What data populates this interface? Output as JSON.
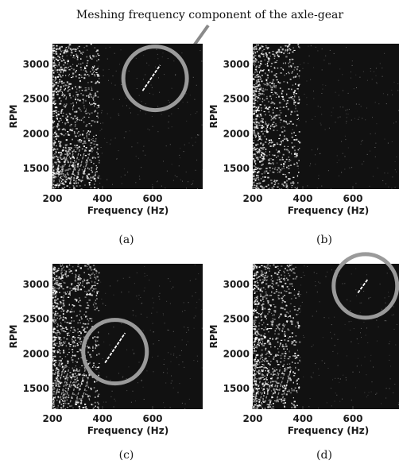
{
  "annotation": {
    "text": "Meshing frequency component of the axle-gear",
    "arrow_color": "#8a8a8a"
  },
  "colors": {
    "background": "#111111",
    "speckle": "#ffffff",
    "circle": "#9a9a9a"
  },
  "chart_data": [
    {
      "type": "spectrogram",
      "panel": "a",
      "caption": "(a)",
      "xlabel": "Frequency (Hz)",
      "ylabel": "RPM",
      "xlim": [
        200,
        800
      ],
      "ylim": [
        1200,
        3300
      ],
      "xticks": [
        200,
        400,
        600
      ],
      "yticks": [
        1500,
        2000,
        2500,
        3000
      ],
      "highlight": {
        "start": [
          560,
          2620
        ],
        "end": [
          630,
          2990
        ],
        "circle_center": [
          610,
          2800
        ]
      }
    },
    {
      "type": "spectrogram",
      "panel": "b",
      "caption": "(b)",
      "xlabel": "Frequency (Hz)",
      "ylabel": "RPM",
      "xlim": [
        200,
        800
      ],
      "ylim": [
        1200,
        3300
      ],
      "xticks": [
        200,
        400,
        600
      ],
      "yticks": [
        1500,
        2000,
        2500,
        3000
      ]
    },
    {
      "type": "spectrogram",
      "panel": "c",
      "caption": "(c)",
      "xlabel": "Frequency (Hz)",
      "ylabel": "RPM",
      "xlim": [
        200,
        800
      ],
      "ylim": [
        1200,
        3300
      ],
      "xticks": [
        200,
        400,
        600
      ],
      "yticks": [
        1500,
        2000,
        2500,
        3000
      ],
      "highlight": {
        "start": [
          410,
          1870
        ],
        "end": [
          490,
          2300
        ],
        "circle_center": [
          450,
          2030
        ]
      }
    },
    {
      "type": "spectrogram",
      "panel": "d",
      "caption": "(d)",
      "xlabel": "Frequency (Hz)",
      "ylabel": "RPM",
      "xlim": [
        200,
        800
      ],
      "ylim": [
        1200,
        3300
      ],
      "xticks": [
        200,
        400,
        600
      ],
      "yticks": [
        1500,
        2000,
        2500,
        3000
      ],
      "highlight": {
        "start": [
          620,
          2880
        ],
        "end": [
          660,
          3080
        ],
        "circle_center": [
          650,
          2980
        ]
      }
    }
  ]
}
